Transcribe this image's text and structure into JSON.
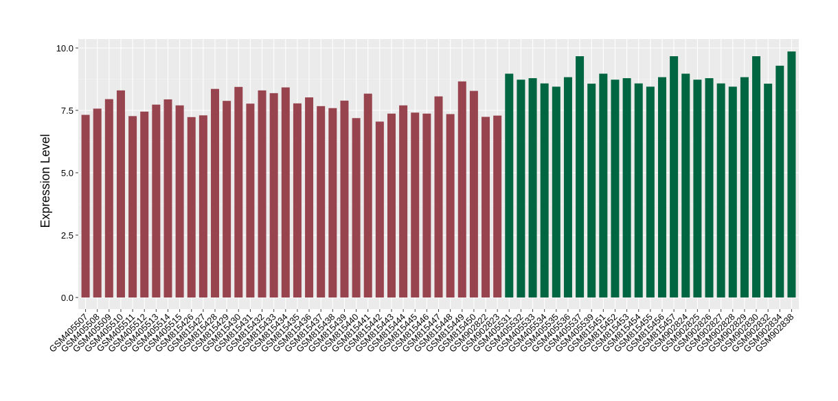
{
  "chart_data": {
    "type": "bar",
    "title": "",
    "xlabel": "",
    "ylabel": "Expression Level",
    "ylim": [
      0,
      10
    ],
    "yticks": [
      "0.0",
      "2.5",
      "5.0",
      "7.5",
      "10.0"
    ],
    "ytick_values": [
      0,
      2.5,
      5,
      7.5,
      10
    ],
    "grid": true,
    "group_colors": [
      "#98444F",
      "#006641"
    ],
    "categories": [
      "GSM405507",
      "GSM405508",
      "GSM405509",
      "GSM405510",
      "GSM405511",
      "GSM405512",
      "GSM405513",
      "GSM405514",
      "GSM405515",
      "GSM815426",
      "GSM815427",
      "GSM815428",
      "GSM815429",
      "GSM815430",
      "GSM815431",
      "GSM815432",
      "GSM815433",
      "GSM815434",
      "GSM815435",
      "GSM815436",
      "GSM815437",
      "GSM815438",
      "GSM815439",
      "GSM815440",
      "GSM815441",
      "GSM815442",
      "GSM815443",
      "GSM815444",
      "GSM815445",
      "GSM815446",
      "GSM815447",
      "GSM815448",
      "GSM815449",
      "GSM815450",
      "GSM902822",
      "GSM902823",
      "GSM405531",
      "GSM405532",
      "GSM405533",
      "GSM405534",
      "GSM405535",
      "GSM405536",
      "GSM405537",
      "GSM405539",
      "GSM815451",
      "GSM815452",
      "GSM815453",
      "GSM815454",
      "GSM815455",
      "GSM815456",
      "GSM815457",
      "GSM902824",
      "GSM902825",
      "GSM902826",
      "GSM902827",
      "GSM902828",
      "GSM902829",
      "GSM902830",
      "GSM902832",
      "GSM902834",
      "GSM902838"
    ],
    "values": [
      7.32,
      7.57,
      7.95,
      8.3,
      7.27,
      7.45,
      7.73,
      7.94,
      7.7,
      7.23,
      7.3,
      8.36,
      7.88,
      8.44,
      7.77,
      8.3,
      8.19,
      8.42,
      7.78,
      8.02,
      7.67,
      7.59,
      7.89,
      7.19,
      8.17,
      7.05,
      7.37,
      7.7,
      7.41,
      7.37,
      8.06,
      7.35,
      8.66,
      8.28,
      7.24,
      7.29,
      8.97,
      8.73,
      8.79,
      8.58,
      8.45,
      8.83,
      9.67,
      8.57,
      8.97,
      8.73,
      8.79,
      8.58,
      8.45,
      8.83,
      9.67,
      8.97,
      8.73,
      8.79,
      8.58,
      8.45,
      8.83,
      9.67,
      8.57,
      9.29,
      9.86
    ],
    "group": [
      0,
      0,
      0,
      0,
      0,
      0,
      0,
      0,
      0,
      0,
      0,
      0,
      0,
      0,
      0,
      0,
      0,
      0,
      0,
      0,
      0,
      0,
      0,
      0,
      0,
      0,
      0,
      0,
      0,
      0,
      0,
      0,
      0,
      0,
      0,
      0,
      1,
      1,
      1,
      1,
      1,
      1,
      1,
      1,
      1,
      1,
      1,
      1,
      1,
      1,
      1,
      1,
      1,
      1,
      1,
      1,
      1,
      1,
      1,
      1,
      1
    ]
  }
}
